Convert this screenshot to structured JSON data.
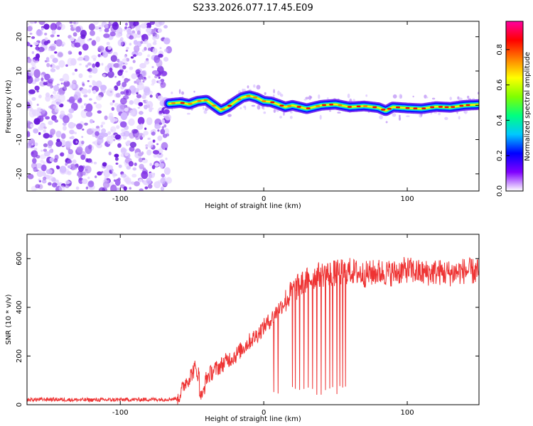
{
  "chart_data": [
    {
      "type": "heatmap",
      "title": "S233.2026.077.17.45.E09",
      "xlabel": "Height of straight line (km)",
      "ylabel": "Frequency (Hz)",
      "xlim": [
        -165,
        150
      ],
      "ylim": [
        -25,
        24.5
      ],
      "x_ticks": [
        "-100",
        "0",
        "100"
      ],
      "x_tick_values": [
        -100,
        0,
        100
      ],
      "y_ticks": [
        "20",
        "10",
        "0",
        "-10",
        "-20"
      ],
      "y_tick_values": [
        20,
        10,
        0,
        -10,
        -20
      ],
      "noise_region_x": [
        -165,
        -66
      ],
      "signal_start_x": -66,
      "ridge": {
        "x": [
          -66,
          -58,
          -52,
          -46,
          -40,
          -35,
          -30,
          -25,
          -20,
          -15,
          -10,
          -5,
          0,
          5,
          10,
          15,
          20,
          30,
          40,
          50,
          60,
          70,
          80,
          85,
          90,
          100,
          110,
          120,
          130,
          140,
          150
        ],
        "y": [
          0.5,
          0.8,
          0.3,
          1.2,
          1.5,
          0.0,
          -1.5,
          -0.5,
          1.0,
          2.3,
          2.8,
          2.2,
          1.2,
          1.0,
          0.3,
          -0.5,
          0.0,
          -1.0,
          0.0,
          0.3,
          -0.5,
          -0.2,
          -0.7,
          -1.6,
          -0.5,
          -0.8,
          -1.0,
          -0.4,
          -0.6,
          0.0,
          0.2
        ]
      },
      "colorbar": {
        "label": "Normalized spectral amplitude",
        "ticks": [
          "0.0",
          "0.2",
          "0.4",
          "0.6",
          "0.8"
        ],
        "tick_values": [
          0.0,
          0.2,
          0.4,
          0.6,
          0.8
        ],
        "range": [
          0.0,
          0.96
        ],
        "colors": [
          "#ffffff",
          "#8000ff",
          "#0000ff",
          "#00c8ff",
          "#00ff80",
          "#80ff00",
          "#ffff00",
          "#ff8000",
          "#ff0000",
          "#ff00a0"
        ]
      }
    },
    {
      "type": "line",
      "xlabel": "Height of straight line (km)",
      "ylabel": "SNR (10 * v/v)",
      "xlim": [
        -165,
        150
      ],
      "ylim": [
        0,
        700
      ],
      "x_ticks": [
        "-100",
        "0",
        "100"
      ],
      "x_tick_values": [
        -100,
        0,
        100
      ],
      "y_ticks": [
        "600",
        "400",
        "200",
        "0"
      ],
      "y_tick_values": [
        600,
        400,
        200,
        0
      ],
      "color": "#ee3333",
      "series": [
        {
          "name": "SNR",
          "x": [
            -165,
            -150,
            -130,
            -110,
            -90,
            -70,
            -60,
            -57,
            -55,
            -52,
            -48,
            -45,
            -43,
            -40,
            -35,
            -30,
            -25,
            -20,
            -15,
            -10,
            -5,
            0,
            5,
            10,
            15,
            20,
            25,
            30,
            35,
            40,
            50,
            60,
            70,
            80,
            90,
            100,
            110,
            120,
            130,
            140,
            150
          ],
          "values": [
            20,
            22,
            20,
            20,
            21,
            22,
            25,
            60,
            90,
            110,
            150,
            120,
            30,
            110,
            140,
            160,
            185,
            200,
            230,
            260,
            285,
            320,
            350,
            390,
            425,
            465,
            490,
            510,
            525,
            535,
            540,
            550,
            535,
            545,
            540,
            555,
            540,
            545,
            540,
            550,
            545
          ]
        }
      ],
      "dropouts_x": [
        7,
        10,
        20,
        22,
        25,
        28,
        31,
        34,
        37,
        40,
        43,
        46,
        48,
        51,
        53,
        55,
        57
      ]
    }
  ]
}
